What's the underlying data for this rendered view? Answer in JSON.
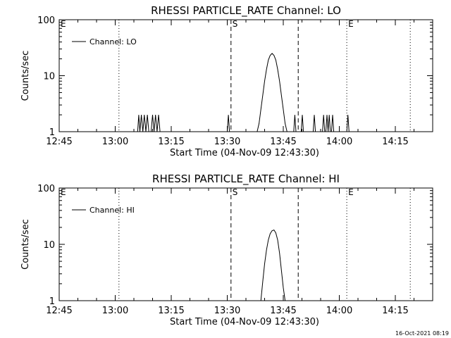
{
  "footer": "16-Oct-2021 08:19",
  "chart_data": [
    {
      "type": "line",
      "title": "RHESSI PARTICLE_RATE Channel: LO",
      "xlabel": "Start Time (04-Nov-09 12:43:30)",
      "ylabel": "Counts/sec",
      "yscale": "log",
      "xlim": [
        "12:45",
        "14:25"
      ],
      "ylim": [
        1,
        100
      ],
      "xticks": [
        "12:45",
        "13:00",
        "13:15",
        "13:30",
        "13:45",
        "14:00",
        "14:15"
      ],
      "yticks": [
        "1",
        "10",
        "100"
      ],
      "legend": {
        "label": "Channel: LO",
        "placement": "top-left"
      },
      "markers": [
        {
          "label": "E",
          "time": "12:45",
          "style": "none"
        },
        {
          "label": "",
          "time": "13:01",
          "style": "dotted"
        },
        {
          "label": "S",
          "time": "13:31",
          "style": "dashed"
        },
        {
          "label": "",
          "time": "13:49",
          "style": "dashed"
        },
        {
          "label": "E",
          "time": "14:02",
          "style": "dotted"
        },
        {
          "label": "",
          "time": "14:19",
          "style": "dotted"
        }
      ],
      "series": [
        {
          "x": [
            "13:06",
            "13:06.3",
            "13:06.6",
            "13:07",
            "13:07.4",
            "13:07.8",
            "13:08.2",
            "13:08.6",
            "13:09",
            "13:09.6",
            "13:10",
            "13:10.4",
            "13:10.8",
            "13:11.2",
            "13:11.6",
            "13:12",
            "13:12.4",
            "13:30",
            "13:30.3",
            "13:30.6",
            "13:38",
            "13:38.5",
            "13:39",
            "13:39.5",
            "13:40",
            "13:40.5",
            "13:41",
            "13:41.5",
            "13:42",
            "13:42.5",
            "13:43",
            "13:43.5",
            "13:44",
            "13:44.5",
            "13:45",
            "13:45.5",
            "13:46",
            "13:46.5",
            "13:47",
            "13:47.8",
            "13:48.1",
            "13:48.4",
            "13:49.8",
            "13:50.1",
            "13:50.4",
            "13:53",
            "13:53.3",
            "13:53.6",
            "13:55.5",
            "13:55.8",
            "13:56.1",
            "13:56.4",
            "13:56.7",
            "13:57",
            "13:57.3",
            "13:57.6",
            "13:57.9",
            "13:58.2",
            "13:58.5",
            "14:02",
            "14:02.3",
            "14:02.6"
          ],
          "y": [
            1,
            2,
            1,
            2,
            1,
            2,
            1,
            2,
            1,
            1,
            2,
            1,
            2,
            1,
            2,
            1,
            1,
            1,
            2,
            1,
            1,
            1.4,
            2.5,
            4.5,
            8,
            13,
            19,
            23,
            25,
            23,
            19,
            13,
            8,
            4.5,
            2.5,
            1.4,
            1,
            1,
            1,
            1,
            2,
            1,
            1,
            2,
            1,
            1,
            2,
            1,
            1,
            2,
            1,
            1,
            2,
            1,
            2,
            1,
            1,
            2,
            1,
            1,
            2,
            1
          ]
        }
      ]
    },
    {
      "type": "line",
      "title": "RHESSI PARTICLE_RATE Channel: HI",
      "xlabel": "Start Time (04-Nov-09 12:43:30)",
      "ylabel": "Counts/sec",
      "yscale": "log",
      "xlim": [
        "12:45",
        "14:25"
      ],
      "ylim": [
        1,
        100
      ],
      "xticks": [
        "12:45",
        "13:00",
        "13:15",
        "13:30",
        "13:45",
        "14:00",
        "14:15"
      ],
      "yticks": [
        "1",
        "10",
        "100"
      ],
      "legend": {
        "label": "Channel: HI",
        "placement": "top-left"
      },
      "markers": [
        {
          "label": "E",
          "time": "12:45",
          "style": "none"
        },
        {
          "label": "",
          "time": "13:01",
          "style": "dotted"
        },
        {
          "label": "S",
          "time": "13:31",
          "style": "dashed"
        },
        {
          "label": "",
          "time": "13:49",
          "style": "dashed"
        },
        {
          "label": "E",
          "time": "14:02",
          "style": "dotted"
        },
        {
          "label": "",
          "time": "14:19",
          "style": "dotted"
        }
      ],
      "series": [
        {
          "x": [
            "13:39",
            "13:39.5",
            "13:40",
            "13:40.5",
            "13:41",
            "13:41.5",
            "13:42",
            "13:42.5",
            "13:43",
            "13:43.5",
            "13:44",
            "13:44.5",
            "13:45",
            "13:45.5"
          ],
          "y": [
            1,
            2.2,
            4.5,
            8,
            12,
            15.5,
            17.5,
            18,
            16,
            12,
            7,
            3.5,
            1.7,
            1
          ]
        }
      ]
    }
  ]
}
